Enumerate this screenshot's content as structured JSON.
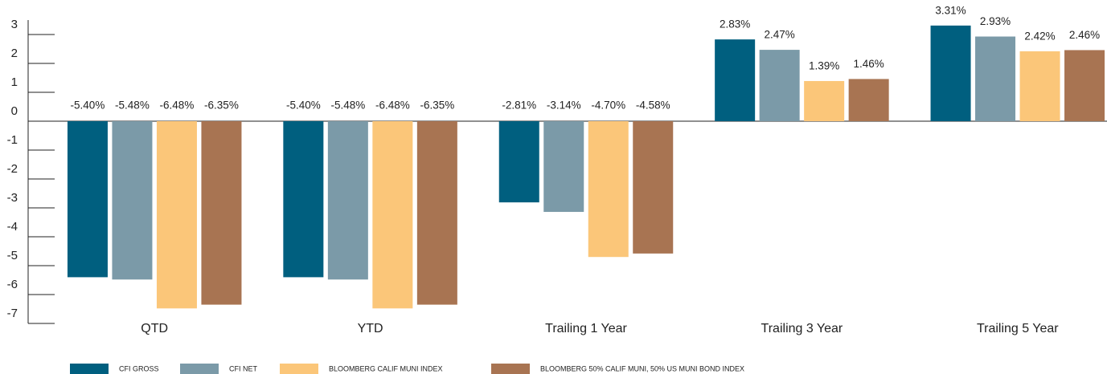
{
  "chart_data": {
    "type": "bar",
    "categories": [
      "QTD",
      "YTD",
      "Trailing 1 Year",
      "Trailing 3 Year",
      "Trailing 5 Year"
    ],
    "series": [
      {
        "name": "CFI GROSS",
        "color": "#005f7f",
        "values": [
          -5.4,
          -5.4,
          -2.81,
          2.83,
          3.31
        ],
        "value_labels": [
          "-5.40%",
          "-5.40%",
          "-2.81%",
          "2.83%",
          "3.31%"
        ]
      },
      {
        "name": "CFI NET",
        "color": "#7b9aa8",
        "values": [
          -5.48,
          -5.48,
          -3.14,
          2.47,
          2.93
        ],
        "value_labels": [
          "-5.48%",
          "-5.48%",
          "-3.14%",
          "2.47%",
          "2.93%"
        ]
      },
      {
        "name": "BLOOMBERG CALIF MUNI INDEX",
        "color": "#fbc679",
        "values": [
          -6.48,
          -6.48,
          -4.7,
          1.39,
          2.42
        ],
        "value_labels": [
          "-6.48%",
          "-6.48%",
          "-4.70%",
          "1.39%",
          "2.42%"
        ]
      },
      {
        "name": "BLOOMBERG 50% CALIF MUNI, 50% US MUNI BOND INDEX",
        "color": "#a87452",
        "values": [
          -6.35,
          -6.35,
          -4.58,
          1.46,
          2.46
        ],
        "value_labels": [
          "-6.35%",
          "-6.35%",
          "-4.58%",
          "1.46%",
          "2.46%"
        ]
      }
    ],
    "ylim": [
      -7,
      3.5
    ],
    "yticks": [
      3,
      2,
      1,
      0,
      -1,
      -2,
      -3,
      -4,
      -5,
      -6,
      -7
    ],
    "legend": "bottom"
  }
}
